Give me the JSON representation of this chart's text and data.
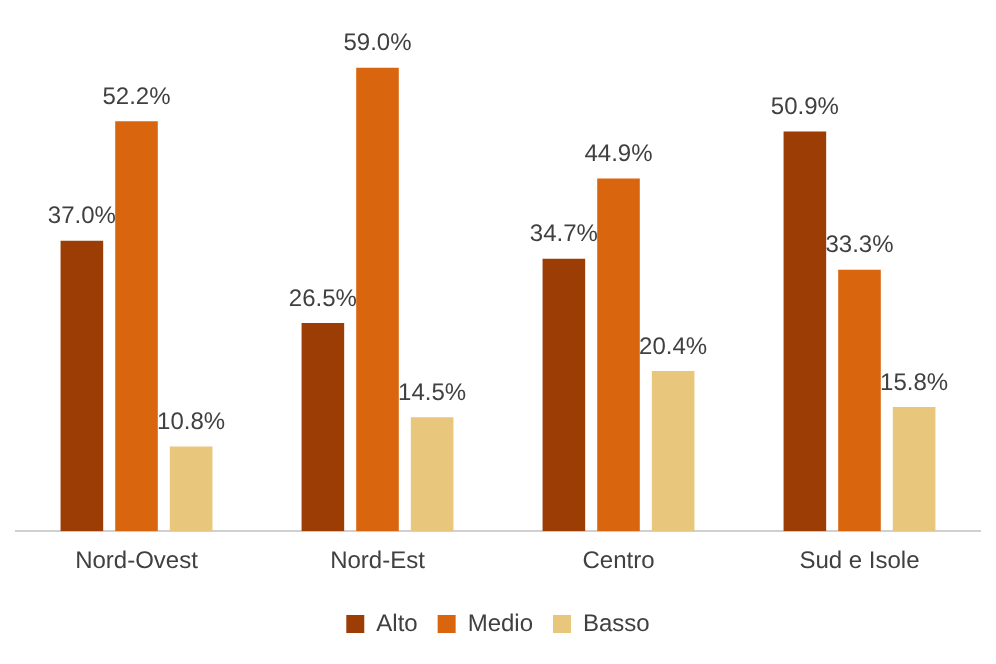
{
  "chart_data": {
    "type": "bar",
    "categories": [
      "Nord-Ovest",
      "Nord-Est",
      "Centro",
      "Sud e Isole"
    ],
    "series": [
      {
        "name": "Alto",
        "color": "#9c3d05",
        "values": [
          37.0,
          26.5,
          34.7,
          50.9
        ],
        "value_labels": [
          "37.0%",
          "26.5%",
          "34.7%",
          "50.9%"
        ]
      },
      {
        "name": "Medio",
        "color": "#d9660f",
        "values": [
          52.2,
          59.0,
          44.9,
          33.3
        ],
        "value_labels": [
          "52.2%",
          "59.0%",
          "44.9%",
          "33.3%"
        ]
      },
      {
        "name": "Basso",
        "color": "#e8c67c",
        "values": [
          10.8,
          14.5,
          20.4,
          15.8
        ],
        "value_labels": [
          "10.8%",
          "14.5%",
          "20.4%",
          "15.8%"
        ]
      }
    ],
    "legend": "bottom",
    "grid": false
  }
}
